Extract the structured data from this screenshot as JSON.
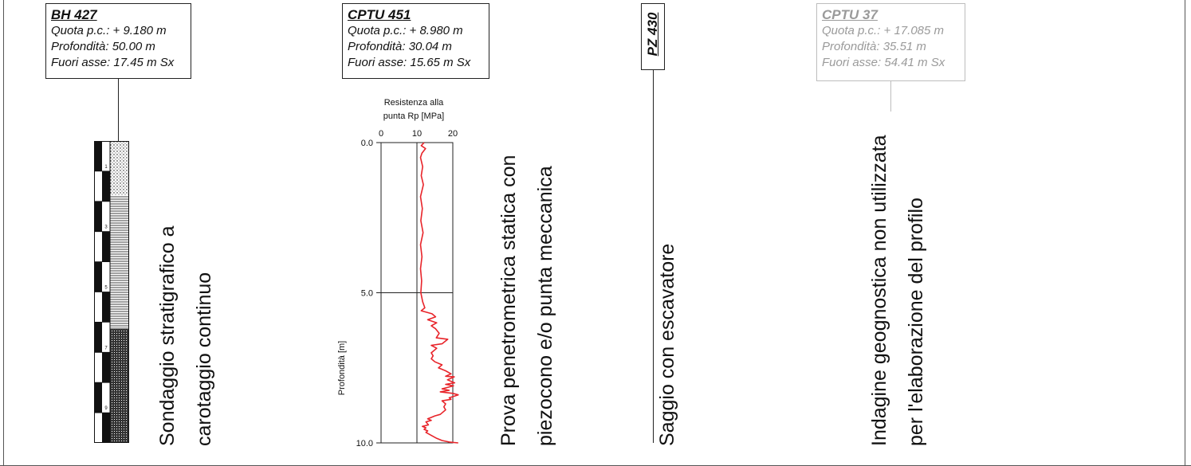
{
  "boreholes": [
    {
      "title": "BH 427",
      "quota": "Quota p.c.: + 9.180 m",
      "profondita": "Profondità: 50.00 m",
      "fuori_asse": "Fuori asse: 17.45 m Sx",
      "type_label": "Sondaggio stratigrafico a carotaggio continuo"
    },
    {
      "title": "CPTU 451",
      "quota": "Quota p.c.: + 8.980 m",
      "profondita": "Profondità: 30.04 m",
      "fuori_asse": "Fuori asse: 15.65 m Sx",
      "type_label": "Prova penetrometrica statica con piezocono e/o punta meccanica"
    },
    {
      "title": "PZ 430",
      "type_label": "Saggio con escavatore"
    },
    {
      "title": "CPTU 37",
      "quota": "Quota p.c.: + 17.085 m",
      "profondita": "Profondità: 35.51 m",
      "fuori_asse": "Fuori asse: 54.41 m Sx",
      "type_label": "Indagine geognostica non utilizzata per l'elaborazione del profilo"
    }
  ],
  "bh427_labels": {
    "line1": "Sondaggio stratigrafico a",
    "line2": "carotaggio continuo",
    "depth_marks": [
      "1",
      "2",
      "3",
      "4",
      "5",
      "6",
      "7",
      "8",
      "9",
      "10"
    ]
  },
  "cptu451_labels": {
    "line1": "Prova penetrometrica statica con",
    "line2": "piezocono e/o punta meccanica"
  },
  "pz430_labels": {
    "line1": "Saggio con escavatore"
  },
  "cptu37_labels": {
    "line1": "Indagine geognostica non utilizzata",
    "line2": "per l'elaborazione del profilo"
  },
  "colors": {
    "curve": "#e8242a",
    "line": "#222222",
    "faded": "#9a9a9a"
  },
  "chart_data": {
    "type": "line",
    "title": "",
    "x_title_line1": "Resistenza alla",
    "x_title_line2": "punta Rp [MPa]",
    "ylabel": "Profondità [m]",
    "xlim": [
      0,
      20
    ],
    "ylim": [
      0,
      10
    ],
    "x_ticks": [
      "0",
      "10",
      "20"
    ],
    "y_ticks": [
      "0.0",
      "5.0",
      "10.0"
    ],
    "y_inverted": true,
    "grid": true,
    "series": [
      {
        "color": "#e8242a",
        "points": [
          [
            12.0,
            0.0
          ],
          [
            11.2,
            0.1
          ],
          [
            12.4,
            0.2
          ],
          [
            11.4,
            0.35
          ],
          [
            11.0,
            0.5
          ],
          [
            11.6,
            0.8
          ],
          [
            11.2,
            1.1
          ],
          [
            11.8,
            1.4
          ],
          [
            11.0,
            1.8
          ],
          [
            11.5,
            2.2
          ],
          [
            11.1,
            2.6
          ],
          [
            11.7,
            3.0
          ],
          [
            11.0,
            3.4
          ],
          [
            11.4,
            3.8
          ],
          [
            11.0,
            4.2
          ],
          [
            11.3,
            4.6
          ],
          [
            11.1,
            5.0
          ],
          [
            11.6,
            5.3
          ],
          [
            12.2,
            5.5
          ],
          [
            11.2,
            5.6
          ],
          [
            14.2,
            5.7
          ],
          [
            15.2,
            5.8
          ],
          [
            13.0,
            5.9
          ],
          [
            15.5,
            6.0
          ],
          [
            14.0,
            6.1
          ],
          [
            15.2,
            6.2
          ],
          [
            16.2,
            6.35
          ],
          [
            15.4,
            6.5
          ],
          [
            18.6,
            6.55
          ],
          [
            17.0,
            6.7
          ],
          [
            14.0,
            6.75
          ],
          [
            15.5,
            6.85
          ],
          [
            14.5,
            6.95
          ],
          [
            14.0,
            7.0
          ],
          [
            14.5,
            7.1
          ],
          [
            14.0,
            7.2
          ],
          [
            15.0,
            7.3
          ],
          [
            17.0,
            7.4
          ],
          [
            16.0,
            7.5
          ],
          [
            18.0,
            7.6
          ],
          [
            19.5,
            7.7
          ],
          [
            18.0,
            7.78
          ],
          [
            20.4,
            7.8
          ],
          [
            18.5,
            7.9
          ],
          [
            20.5,
            8.0
          ],
          [
            18.0,
            8.05
          ],
          [
            20.2,
            8.1
          ],
          [
            17.0,
            8.2
          ],
          [
            19.0,
            8.25
          ],
          [
            16.5,
            8.3
          ],
          [
            20.0,
            8.35
          ],
          [
            21.5,
            8.4
          ],
          [
            19.0,
            8.5
          ],
          [
            19.5,
            8.55
          ],
          [
            17.0,
            8.6
          ],
          [
            18.0,
            8.7
          ],
          [
            17.5,
            8.8
          ],
          [
            18.0,
            8.9
          ],
          [
            17.0,
            9.0
          ],
          [
            16.5,
            9.05
          ],
          [
            15.0,
            9.1
          ],
          [
            14.0,
            9.15
          ],
          [
            13.0,
            9.2
          ],
          [
            14.0,
            9.25
          ],
          [
            12.5,
            9.3
          ],
          [
            13.2,
            9.4
          ],
          [
            11.5,
            9.45
          ],
          [
            12.5,
            9.5
          ],
          [
            12.0,
            9.55
          ],
          [
            13.0,
            9.6
          ],
          [
            12.5,
            9.65
          ],
          [
            14.0,
            9.75
          ],
          [
            15.5,
            9.85
          ],
          [
            17.0,
            9.92
          ],
          [
            19.0,
            9.97
          ],
          [
            21.5,
            10.0
          ]
        ]
      }
    ]
  }
}
